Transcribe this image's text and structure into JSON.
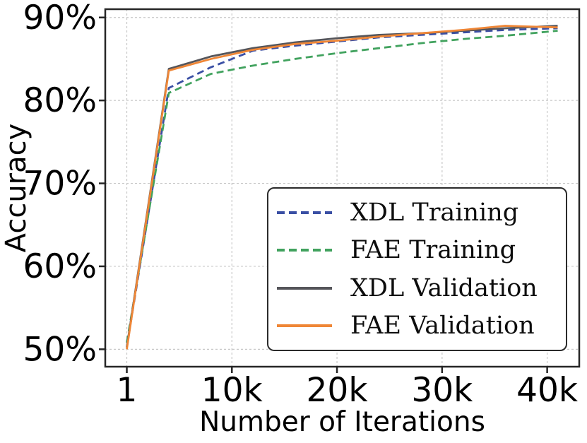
{
  "figure": {
    "background": "#ffffff",
    "grid_color": "#c8c8c8",
    "spine_color": "#262626",
    "tick_label_color": "#000000"
  },
  "chart_data": {
    "type": "line",
    "title": "",
    "xlabel": "Number of Iterations",
    "ylabel": "Accuracy",
    "x": [
      1,
      4000,
      8000,
      12000,
      16000,
      20000,
      24000,
      28000,
      32000,
      36000,
      41000
    ],
    "series": [
      {
        "name": "XDL Training",
        "color": "#3a4fa4",
        "style": "dashed",
        "values": [
          50.3,
          81.5,
          84.0,
          86.0,
          86.6,
          87.1,
          87.6,
          87.9,
          88.2,
          88.5,
          88.7
        ]
      },
      {
        "name": "FAE Training",
        "color": "#41a25e",
        "style": "dashed",
        "values": [
          50.8,
          80.9,
          83.2,
          84.2,
          85.0,
          85.7,
          86.3,
          86.9,
          87.4,
          87.8,
          88.4
        ]
      },
      {
        "name": "XDL Validation",
        "color": "#55555a",
        "style": "solid",
        "values": [
          50.2,
          83.8,
          85.3,
          86.3,
          87.0,
          87.5,
          87.9,
          88.1,
          88.4,
          88.7,
          89.0
        ]
      },
      {
        "name": "FAE Validation",
        "color": "#ef8636",
        "style": "solid",
        "values": [
          50.0,
          83.6,
          85.0,
          86.1,
          86.8,
          87.2,
          87.7,
          88.1,
          88.5,
          89.0,
          88.8
        ]
      }
    ],
    "xlim": [
      -2050,
      43050
    ],
    "ylim": [
      47.9,
      91.0
    ],
    "xticks": {
      "values": [
        1,
        10000,
        20000,
        30000,
        40000
      ],
      "labels": [
        "1",
        "10k",
        "20k",
        "30k",
        "40k"
      ]
    },
    "yticks": {
      "values": [
        50,
        60,
        70,
        80,
        90
      ],
      "labels": [
        "50%",
        "60%",
        "70%",
        "80%",
        "90%"
      ]
    },
    "grid": true,
    "grid_style": "dashed",
    "legend_position": "center-right"
  }
}
